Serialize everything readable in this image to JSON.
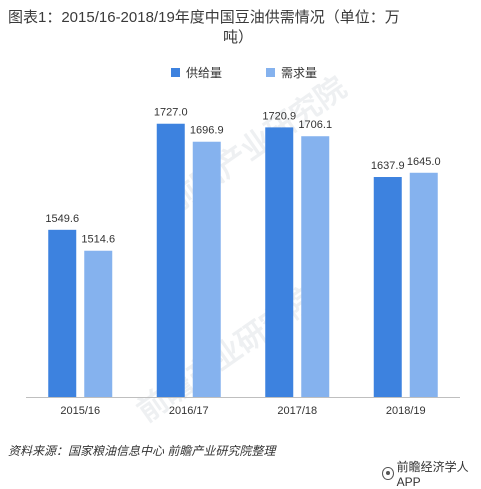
{
  "title": {
    "line1": "图表1：2015/16-2018/19年度中国豆油供需情况（单位：万",
    "line2": "吨）"
  },
  "legend": {
    "supply": "供给量",
    "demand": "需求量"
  },
  "colors": {
    "supply": "#3d82df",
    "demand": "#85b2ee"
  },
  "chart_data": {
    "type": "bar",
    "categories": [
      "2015/16",
      "2016/17",
      "2017/18",
      "2018/19"
    ],
    "series": [
      {
        "name": "供给量",
        "values": [
          1549.6,
          1727.0,
          1720.9,
          1637.9
        ]
      },
      {
        "name": "需求量",
        "values": [
          1514.6,
          1696.9,
          1706.1,
          1645.0
        ]
      }
    ],
    "value_labels": [
      [
        "1549.6",
        "1727.0",
        "1720.9",
        "1637.9"
      ],
      [
        "1514.6",
        "1696.9",
        "1706.1",
        "1645.0"
      ]
    ],
    "title": "图表1：2015/16-2018/19年度中国豆油供需情况（单位：万吨）",
    "ylim": [
      1270,
      1760
    ],
    "grid": false,
    "legend_position": "top-center"
  },
  "watermark": "前瞻产业研究院",
  "source": "资料来源：国家粮油信息中心 前瞻产业研究院整理",
  "brand": "前瞻经济学人APP"
}
